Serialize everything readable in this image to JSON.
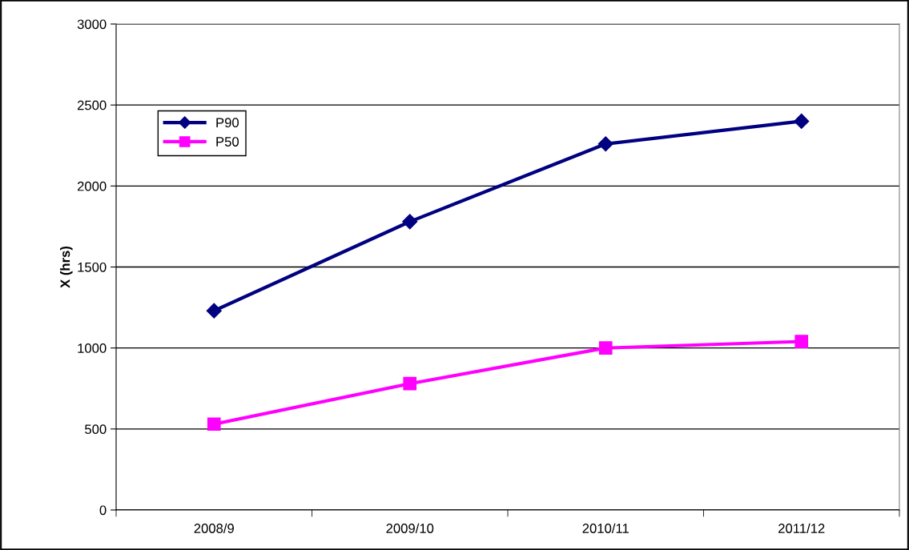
{
  "chart_data": {
    "type": "line",
    "ylabel": "X (hrs)",
    "categories": [
      "2008/9",
      "2009/10",
      "2010/11",
      "2011/12"
    ],
    "series": [
      {
        "name": "P90",
        "color": "#000080",
        "marker": "diamond",
        "values": [
          1230,
          1780,
          2260,
          2400
        ]
      },
      {
        "name": "P50",
        "color": "#ff00ff",
        "marker": "square",
        "values": [
          530,
          780,
          1000,
          1040
        ]
      }
    ],
    "ylim": [
      0,
      3000
    ],
    "yticks": [
      0,
      500,
      1000,
      1500,
      2000,
      2500,
      3000
    ],
    "grid": "y",
    "legend": "top left",
    "line_style": "solid"
  }
}
